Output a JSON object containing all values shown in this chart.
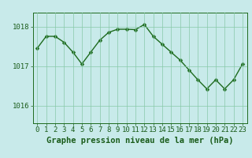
{
  "x": [
    0,
    1,
    2,
    3,
    4,
    5,
    6,
    7,
    8,
    9,
    10,
    11,
    12,
    13,
    14,
    15,
    16,
    17,
    18,
    19,
    20,
    21,
    22,
    23
  ],
  "y": [
    1017.45,
    1017.75,
    1017.75,
    1017.6,
    1017.35,
    1017.05,
    1017.35,
    1017.65,
    1017.85,
    1017.93,
    1017.93,
    1017.92,
    1018.05,
    1017.75,
    1017.55,
    1017.35,
    1017.15,
    1016.9,
    1016.65,
    1016.42,
    1016.65,
    1016.42,
    1016.65,
    1017.05
  ],
  "line_color": "#1e6b1e",
  "marker_color": "#1e6b1e",
  "bg_color": "#c8eaea",
  "grid_color": "#88c8a8",
  "axis_color": "#1e6b1e",
  "text_color": "#1a5c1a",
  "xlabel": "Graphe pression niveau de la mer (hPa)",
  "xlabel_fontsize": 7.5,
  "tick_fontsize": 6.5,
  "ylim": [
    1015.55,
    1018.35
  ],
  "yticks": [
    1016,
    1017,
    1018
  ],
  "xticks": [
    0,
    1,
    2,
    3,
    4,
    5,
    6,
    7,
    8,
    9,
    10,
    11,
    12,
    13,
    14,
    15,
    16,
    17,
    18,
    19,
    20,
    21,
    22,
    23
  ],
  "line_width": 1.0,
  "marker_size": 2.5
}
